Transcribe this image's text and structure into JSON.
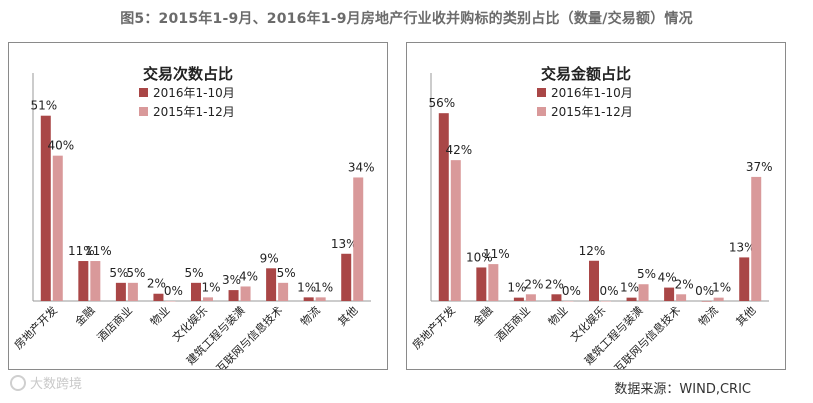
{
  "title": "图5：2015年1-9月、2016年1-9月房地产行业收并购标的类别占比（数量/交易额）情况",
  "source": "数据来源：WIND,CRIC",
  "watermark": "大数跨境",
  "colors": {
    "series_2016": "#a94646",
    "series_2015": "#d9999a",
    "axis": "#999999",
    "text": "#222222"
  },
  "chart_data": [
    {
      "type": "bar",
      "title": "交易次数占比",
      "categories": [
        "房地产开发",
        "金融",
        "酒店商业",
        "物业",
        "文化娱乐",
        "建筑工程与装潢",
        "互联网与信息技术",
        "物流",
        "其他"
      ],
      "series": [
        {
          "name": "2016年1-10月",
          "values": [
            51,
            11,
            5,
            2,
            5,
            3,
            9,
            1,
            13
          ]
        },
        {
          "name": "2015年1-12月",
          "values": [
            40,
            11,
            5,
            0,
            1,
            4,
            5,
            1,
            34
          ]
        }
      ],
      "ylim": [
        0,
        60
      ],
      "xlabel": "",
      "ylabel": "",
      "legend": "top-center"
    },
    {
      "type": "bar",
      "title": "交易金额占比",
      "categories": [
        "房地产开发",
        "金融",
        "酒店商业",
        "物业",
        "文化娱乐",
        "建筑工程与装潢",
        "互联网与信息技术",
        "物流",
        "其他"
      ],
      "series": [
        {
          "name": "2016年1-10月",
          "values": [
            56,
            10,
            1,
            2,
            12,
            1,
            4,
            0,
            13
          ]
        },
        {
          "name": "2015年1-12月",
          "values": [
            42,
            11,
            2,
            0,
            0,
            5,
            2,
            1,
            37
          ]
        }
      ],
      "ylim": [
        0,
        65
      ],
      "xlabel": "",
      "ylabel": "",
      "legend": "top-center"
    }
  ]
}
